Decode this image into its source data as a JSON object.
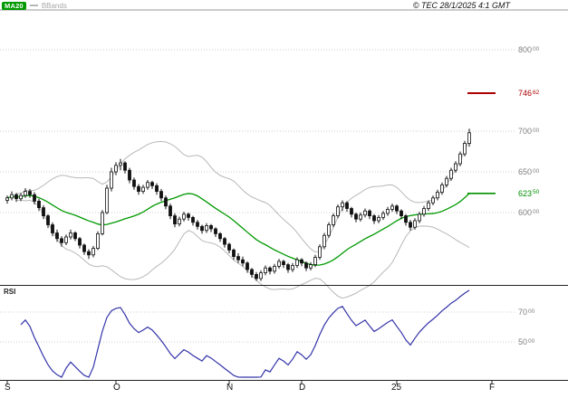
{
  "colors": {
    "ma_line": "#009900",
    "bband_line": "#b8b8b8",
    "candle": "#111111",
    "rsi_line": "#3333aa",
    "resistance": "#aa0000",
    "support": "#009000",
    "grid": "#cfcfcf",
    "frame_light": "#9a9a9a",
    "frame_dark": "#222222",
    "axis_text": "#808080"
  },
  "header": {
    "legend": [
      {
        "label": "MA20",
        "color": "#009900"
      },
      {
        "label": "BBands",
        "color": "#b8b8b8"
      }
    ],
    "copyright": "© TEC 28/1/2025 4:1 GMT"
  },
  "price_axis": {
    "labels": [
      {
        "value": 800.0,
        "main": "800",
        "sup": "00",
        "kind": "grid"
      },
      {
        "value": 746.62,
        "main": "746",
        "sup": "62",
        "kind": "resistance"
      },
      {
        "value": 700.0,
        "main": "700",
        "sup": "00",
        "kind": "grid"
      },
      {
        "value": 650.0,
        "main": "650",
        "sup": "00",
        "kind": "grid"
      },
      {
        "value": 623.5,
        "main": "623",
        "sup": "50",
        "kind": "support"
      },
      {
        "value": 600.0,
        "main": "600",
        "sup": "00",
        "kind": "grid"
      }
    ]
  },
  "x_axis": {
    "labels": [
      {
        "label": "S",
        "slot": 0
      },
      {
        "label": "O",
        "slot": 24
      },
      {
        "label": "N",
        "slot": 49
      },
      {
        "label": "D",
        "slot": 65
      },
      {
        "label": "25",
        "slot": 86
      },
      {
        "label": "F",
        "slot": 107
      }
    ]
  },
  "rsi_panel": {
    "label": "RSI",
    "axis_labels": [
      {
        "value": 70,
        "main": "70",
        "sup": "00"
      },
      {
        "value": 50,
        "main": "50",
        "sup": "00"
      }
    ]
  },
  "levels": [
    {
      "value": 746.62,
      "kind": "resistance"
    },
    {
      "value": 623.5,
      "kind": "support"
    }
  ],
  "chart_data": [
    {
      "type": "candlestick",
      "panel": "price",
      "title": "",
      "x_unit": "trading-day",
      "x_month_ticks": [
        "S",
        "O",
        "N",
        "D",
        "25",
        "F"
      ],
      "y_axis": {
        "range": [
          511,
          850
        ],
        "labels": [
          800.0,
          746.62,
          700.0,
          650.0,
          623.5,
          600.0
        ]
      },
      "levels": [
        {
          "value": 746.62,
          "kind": "resistance"
        },
        {
          "value": 623.5,
          "kind": "support"
        }
      ],
      "overlays": [
        {
          "name": "MA20",
          "derived": "sma",
          "period": 20,
          "last_value": 623.5
        },
        {
          "name": "BBands",
          "derived": "bollinger",
          "period": 20,
          "stddev": 2
        }
      ],
      "ohlc": [
        [
          615,
          621,
          611,
          618
        ],
        [
          618,
          626,
          615,
          622
        ],
        [
          622,
          624,
          613,
          617
        ],
        [
          617,
          624,
          614,
          621
        ],
        [
          621,
          630,
          618,
          626
        ],
        [
          626,
          629,
          618,
          622
        ],
        [
          622,
          625,
          610,
          614
        ],
        [
          614,
          617,
          602,
          606
        ],
        [
          606,
          609,
          592,
          596
        ],
        [
          596,
          598,
          581,
          585
        ],
        [
          585,
          588,
          571,
          575
        ],
        [
          575,
          579,
          564,
          568
        ],
        [
          568,
          571,
          558,
          563
        ],
        [
          563,
          573,
          560,
          570
        ],
        [
          570,
          579,
          567,
          575
        ],
        [
          575,
          577,
          565,
          568
        ],
        [
          568,
          570,
          556,
          560
        ],
        [
          560,
          562,
          548,
          552
        ],
        [
          552,
          555,
          543,
          548
        ],
        [
          548,
          559,
          545,
          556
        ],
        [
          556,
          577,
          554,
          574
        ],
        [
          574,
          603,
          572,
          600
        ],
        [
          600,
          634,
          598,
          630
        ],
        [
          630,
          655,
          626,
          650
        ],
        [
          650,
          662,
          646,
          658
        ],
        [
          658,
          666,
          652,
          661
        ],
        [
          661,
          663,
          648,
          652
        ],
        [
          652,
          655,
          636,
          640
        ],
        [
          640,
          643,
          628,
          632
        ],
        [
          632,
          635,
          622,
          626
        ],
        [
          626,
          634,
          623,
          631
        ],
        [
          631,
          640,
          628,
          637
        ],
        [
          637,
          639,
          629,
          633
        ],
        [
          633,
          636,
          622,
          626
        ],
        [
          626,
          629,
          614,
          618
        ],
        [
          618,
          621,
          604,
          608
        ],
        [
          608,
          611,
          592,
          596
        ],
        [
          596,
          599,
          582,
          586
        ],
        [
          586,
          595,
          583,
          592
        ],
        [
          592,
          601,
          589,
          598
        ],
        [
          598,
          600,
          590,
          594
        ],
        [
          594,
          596,
          584,
          588
        ],
        [
          588,
          591,
          579,
          583
        ],
        [
          583,
          585,
          574,
          578
        ],
        [
          578,
          587,
          575,
          584
        ],
        [
          584,
          586,
          576,
          580
        ],
        [
          580,
          582,
          570,
          574
        ],
        [
          574,
          576,
          564,
          568
        ],
        [
          568,
          570,
          557,
          561
        ],
        [
          561,
          563,
          550,
          554
        ],
        [
          554,
          556,
          542,
          546
        ],
        [
          546,
          550,
          538,
          542
        ],
        [
          542,
          546,
          534,
          538
        ],
        [
          538,
          540,
          526,
          530
        ],
        [
          530,
          532,
          520,
          524
        ],
        [
          524,
          527,
          516,
          519
        ],
        [
          519,
          529,
          516,
          526
        ],
        [
          526,
          535,
          523,
          532
        ],
        [
          532,
          534,
          524,
          528
        ],
        [
          528,
          537,
          525,
          534
        ],
        [
          534,
          543,
          531,
          540
        ],
        [
          540,
          542,
          532,
          536
        ],
        [
          536,
          538,
          526,
          530
        ],
        [
          530,
          538,
          527,
          535
        ],
        [
          535,
          545,
          532,
          542
        ],
        [
          542,
          544,
          534,
          538
        ],
        [
          538,
          540,
          528,
          532
        ],
        [
          532,
          539,
          529,
          536
        ],
        [
          536,
          548,
          533,
          545
        ],
        [
          545,
          561,
          542,
          558
        ],
        [
          558,
          575,
          555,
          572
        ],
        [
          572,
          588,
          569,
          585
        ],
        [
          585,
          599,
          582,
          596
        ],
        [
          596,
          610,
          593,
          607
        ],
        [
          607,
          615,
          602,
          612
        ],
        [
          612,
          614,
          601,
          605
        ],
        [
          605,
          607,
          594,
          598
        ],
        [
          598,
          600,
          588,
          592
        ],
        [
          592,
          600,
          589,
          597
        ],
        [
          597,
          605,
          594,
          602
        ],
        [
          602,
          604,
          592,
          596
        ],
        [
          596,
          598,
          586,
          590
        ],
        [
          590,
          597,
          587,
          594
        ],
        [
          594,
          602,
          591,
          599
        ],
        [
          599,
          607,
          596,
          604
        ],
        [
          604,
          611,
          601,
          608
        ],
        [
          608,
          610,
          598,
          602
        ],
        [
          602,
          604,
          592,
          596
        ],
        [
          596,
          598,
          584,
          588
        ],
        [
          588,
          591,
          578,
          582
        ],
        [
          582,
          593,
          579,
          590
        ],
        [
          590,
          601,
          587,
          598
        ],
        [
          598,
          608,
          595,
          605
        ],
        [
          605,
          615,
          602,
          612
        ],
        [
          612,
          621,
          609,
          618
        ],
        [
          618,
          628,
          615,
          625
        ],
        [
          625,
          637,
          622,
          634
        ],
        [
          634,
          645,
          631,
          642
        ],
        [
          642,
          655,
          639,
          652
        ],
        [
          652,
          663,
          649,
          660
        ],
        [
          660,
          675,
          657,
          672
        ],
        [
          672,
          688,
          669,
          685
        ],
        [
          685,
          703,
          681,
          698
        ]
      ]
    },
    {
      "type": "line",
      "panel": "rsi",
      "name": "RSI",
      "derived": "rsi",
      "period": 14,
      "y_axis": {
        "range": [
          25,
          86
        ],
        "labels": [
          70.0,
          50.0
        ]
      }
    }
  ]
}
